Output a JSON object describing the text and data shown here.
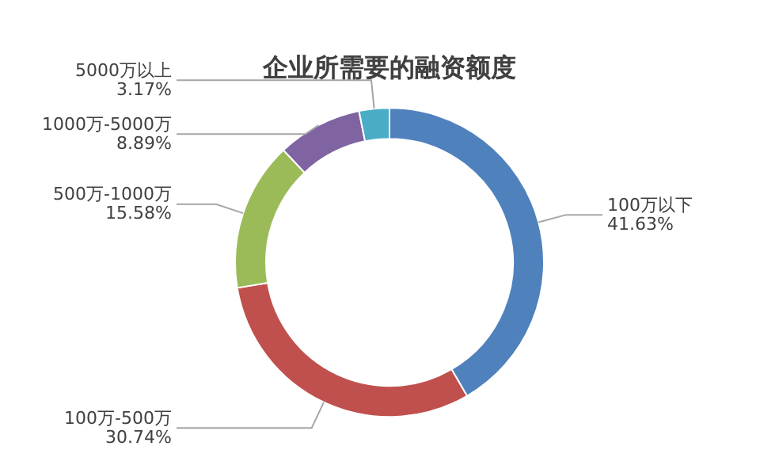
{
  "chart_data": {
    "type": "donut",
    "title": "企业所需要的融资额度",
    "categories": [
      "100万以下",
      "100万-500万",
      "500万-1000万",
      "1000万-5000万",
      "5000万以上"
    ],
    "values": [
      41.63,
      30.74,
      15.58,
      8.89,
      3.17
    ],
    "value_labels": [
      "41.63%",
      "30.74%",
      "15.58%",
      "8.89%",
      "3.17%"
    ],
    "colors": [
      "#4f81bd",
      "#c0504d",
      "#9bbb59",
      "#8064a2",
      "#4bacc6"
    ],
    "legend": false
  }
}
